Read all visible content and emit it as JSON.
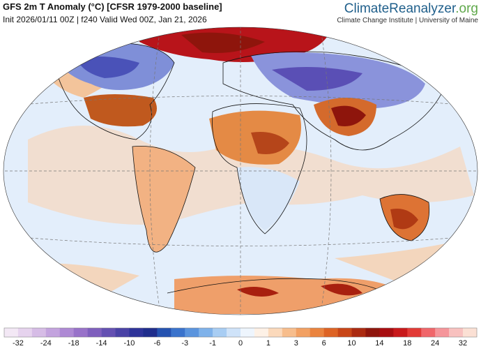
{
  "header": {
    "title": "GFS 2m T Anomaly (°C) [CFSR 1979-2000 baseline]",
    "subtitle": "Init 2026/01/11 00Z | f240 Valid Wed 00Z, Jan 21, 2026"
  },
  "brand": {
    "name": "ClimateReanalyzer",
    "suffix": ".org",
    "affiliation": "Climate Change Institute | University of Maine"
  },
  "colorbar": {
    "ticks": [
      -32,
      -24,
      -18,
      -14,
      -10,
      -6,
      -3,
      -1,
      0,
      1,
      3,
      6,
      10,
      14,
      18,
      24,
      32
    ],
    "colors": [
      "#f3e8f5",
      "#e6d3ee",
      "#d6bce6",
      "#c3a3de",
      "#ae89d4",
      "#9872c9",
      "#7f5fbd",
      "#6450b2",
      "#4a42a6",
      "#2e3399",
      "#1f2d8c",
      "#2552b0",
      "#3a73cc",
      "#5a94de",
      "#7fb2ea",
      "#a8cdf3",
      "#cfe3f9",
      "#eef5fd",
      "#fdf1e6",
      "#fbd9bb",
      "#f7bd8c",
      "#f2a062",
      "#ea833e",
      "#dd6324",
      "#c84516",
      "#ab2a10",
      "#8e150c",
      "#a80d10",
      "#c8181a",
      "#e23a36",
      "#f0666a",
      "#f5959a",
      "#f8c1bf",
      "#fbe0d4"
    ]
  }
}
